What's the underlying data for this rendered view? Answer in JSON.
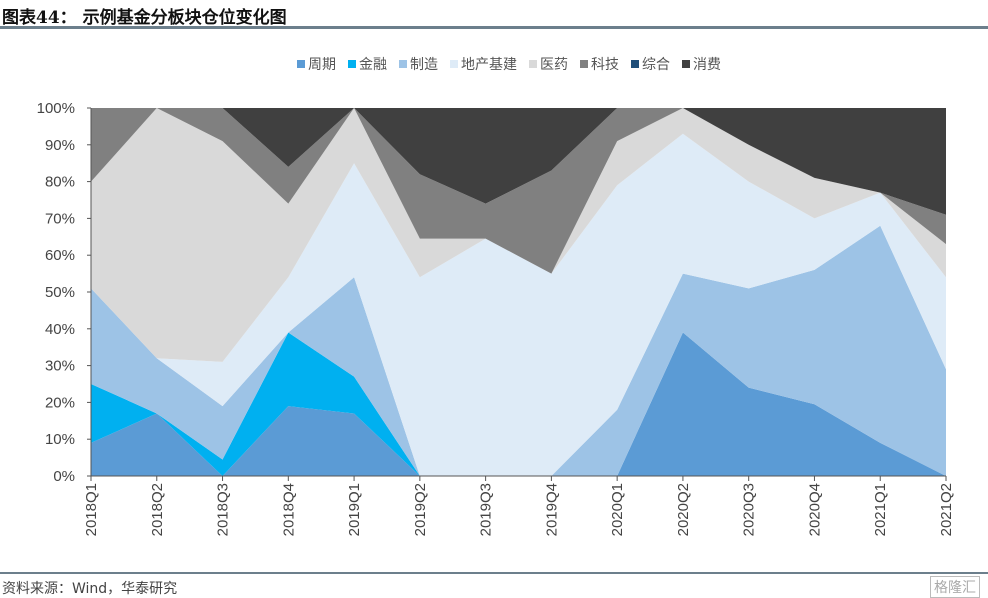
{
  "title": "图表44：  示例基金分板块仓位变化图",
  "source": "资料来源：Wind，华泰研究",
  "watermark": "格隆汇",
  "chart_data": {
    "type": "area",
    "stacked": true,
    "normalized": true,
    "x": [
      "2018Q1",
      "2018Q2",
      "2018Q3",
      "2018Q4",
      "2019Q1",
      "2019Q2",
      "2019Q3",
      "2019Q4",
      "2020Q1",
      "2020Q2",
      "2020Q3",
      "2020Q4",
      "2021Q1",
      "2021Q2"
    ],
    "ylim": [
      0,
      100
    ],
    "yticks": [
      "0%",
      "10%",
      "20%",
      "30%",
      "40%",
      "50%",
      "60%",
      "70%",
      "80%",
      "90%",
      "100%"
    ],
    "legend_position": "top",
    "grid": false,
    "series": [
      {
        "name": "周期",
        "color": "#5b9bd5",
        "values": [
          9,
          17,
          0,
          19,
          17,
          0,
          0,
          0,
          0,
          39,
          24,
          19.5,
          9,
          0
        ]
      },
      {
        "name": "金融",
        "color": "#00b0f0",
        "values": [
          16,
          0,
          4.5,
          20,
          10,
          0,
          0,
          0,
          0,
          0,
          0,
          0,
          0,
          0
        ]
      },
      {
        "name": "制造",
        "color": "#9dc3e6",
        "values": [
          26,
          15,
          14.5,
          0,
          27,
          0,
          0,
          0,
          18,
          16,
          27,
          36.5,
          59,
          29
        ]
      },
      {
        "name": "地产基建",
        "color": "#deebf7",
        "values": [
          0,
          0,
          12,
          15,
          31,
          54,
          64.5,
          55,
          61,
          38,
          29,
          14,
          9,
          25
        ]
      },
      {
        "name": "医药",
        "color": "#d9d9d9",
        "values": [
          29,
          68,
          60,
          20,
          15,
          10.5,
          0,
          0,
          12,
          7,
          10,
          11,
          0,
          9
        ]
      },
      {
        "name": "科技",
        "color": "#808080",
        "values": [
          20,
          0,
          9,
          10,
          0,
          17.5,
          9.5,
          28,
          9,
          0,
          0,
          0,
          0,
          8
        ]
      },
      {
        "name": "综合",
        "color": "#1f4e79",
        "values": [
          0,
          0,
          0,
          0,
          0,
          0,
          0,
          0,
          0,
          0,
          0,
          0,
          0,
          0
        ]
      },
      {
        "name": "消费",
        "color": "#404040",
        "values": [
          0,
          0,
          0,
          16,
          0,
          18,
          26,
          17,
          0,
          0,
          10,
          19,
          23,
          29
        ]
      }
    ]
  }
}
